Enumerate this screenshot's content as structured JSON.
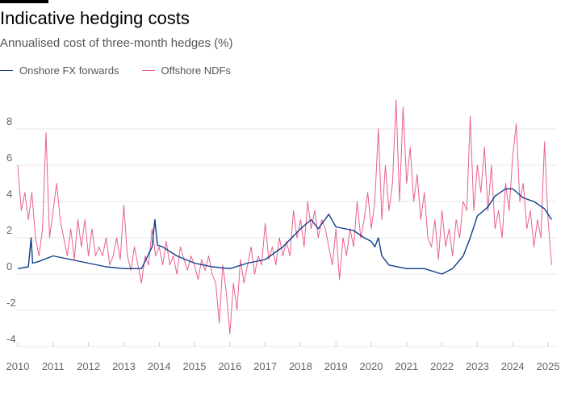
{
  "title": "Indicative hedging costs",
  "subtitle": "Annualised cost of three-month hedges (%)",
  "colors": {
    "onshore": "#0f3f8a",
    "offshore": "#e8608f",
    "grid": "#e8e6e4"
  },
  "chart_data": {
    "type": "line",
    "title": "Indicative hedging costs",
    "ylabel": "Annualised cost of three-month hedges (%)",
    "xlim": [
      2010,
      2025.1
    ],
    "ylim": [
      -4,
      10
    ],
    "yticks": [
      "8",
      "6",
      "4",
      "2",
      "0",
      "-2",
      "-4"
    ],
    "ytick_values": [
      8,
      6,
      4,
      2,
      0,
      -2,
      -4
    ],
    "xticks": [
      "2010",
      "2011",
      "2012",
      "2013",
      "2014",
      "2015",
      "2016",
      "2017",
      "2018",
      "2019",
      "2020",
      "2021",
      "2022",
      "2023",
      "2024",
      "2025"
    ],
    "grid": true,
    "legend_placement": "top-left",
    "series": [
      {
        "name": "Onshore FX forwards",
        "x": [
          2010,
          2010.3,
          2010.38,
          2010.42,
          2010.6,
          2011,
          2011.5,
          2012,
          2012.5,
          2013,
          2013.5,
          2013.8,
          2013.88,
          2013.95,
          2014.1,
          2014.5,
          2015,
          2015.5,
          2016,
          2016.5,
          2017,
          2017.5,
          2018,
          2018.3,
          2018.5,
          2018.8,
          2019,
          2019.5,
          2019.8,
          2020,
          2020.1,
          2020.2,
          2020.3,
          2020.5,
          2021,
          2021.5,
          2022,
          2022.3,
          2022.6,
          2022.8,
          2023,
          2023.3,
          2023.5,
          2023.8,
          2024,
          2024.3,
          2024.6,
          2024.9,
          2025.1
        ],
        "y": [
          0.3,
          0.4,
          2.0,
          0.6,
          0.7,
          1.0,
          0.8,
          0.6,
          0.4,
          0.3,
          0.3,
          1.5,
          3.0,
          1.6,
          1.5,
          1.0,
          0.6,
          0.4,
          0.3,
          0.6,
          0.8,
          1.5,
          2.5,
          3.0,
          2.5,
          3.3,
          2.6,
          2.4,
          2.0,
          1.8,
          1.5,
          2.0,
          1.0,
          0.5,
          0.3,
          0.3,
          0.0,
          0.3,
          1.0,
          2.0,
          3.2,
          3.7,
          4.3,
          4.7,
          4.7,
          4.2,
          4.0,
          3.6,
          3.0
        ]
      },
      {
        "name": "Offshore NDFs",
        "x_start": 2010,
        "x_step": 0.1,
        "y": [
          6.0,
          3.5,
          4.5,
          3.0,
          4.5,
          2.0,
          1.0,
          2.5,
          7.8,
          2.0,
          3.5,
          5.0,
          3.0,
          2.0,
          1.0,
          2.5,
          0.8,
          3.0,
          1.5,
          3.0,
          1.0,
          2.5,
          1.0,
          1.5,
          1.0,
          2.0,
          0.5,
          1.0,
          2.0,
          0.8,
          3.8,
          1.0,
          0.2,
          1.5,
          0.5,
          -0.5,
          1.0,
          0.5,
          2.5,
          1.0,
          1.5,
          0.5,
          1.8,
          0.5,
          1.0,
          0.0,
          1.5,
          0.8,
          0.2,
          1.0,
          0.5,
          -0.3,
          0.8,
          0.2,
          1.0,
          0.0,
          -0.5,
          -2.7,
          0.5,
          -1.0,
          -3.3,
          -0.5,
          -2.0,
          0.8,
          -0.5,
          0.5,
          1.5,
          0.0,
          1.0,
          0.5,
          2.8,
          0.8,
          1.5,
          0.5,
          2.0,
          1.0,
          1.8,
          1.0,
          3.5,
          2.0,
          3.0,
          1.5,
          4.0,
          2.5,
          3.5,
          2.0,
          3.0,
          2.5,
          1.5,
          0.5,
          2.5,
          -0.3,
          2.0,
          1.0,
          2.5,
          1.5,
          4.0,
          2.0,
          3.0,
          4.5,
          2.5,
          4.0,
          8.0,
          3.0,
          6.0,
          3.5,
          5.0,
          9.6,
          4.0,
          9.2,
          5.0,
          7.0,
          4.0,
          5.5,
          3.0,
          4.5,
          2.0,
          1.5,
          3.0,
          0.8,
          3.5,
          1.5,
          2.5,
          1.0,
          3.0,
          2.0,
          4.0,
          3.5,
          8.7,
          3.5,
          6.0,
          4.5,
          7.0,
          3.5,
          6.0,
          2.5,
          3.5,
          2.0,
          5.0,
          3.5,
          6.5,
          8.3,
          4.0,
          5.0,
          2.5,
          3.5,
          1.5,
          3.0,
          2.0,
          7.3,
          3.0,
          0.5
        ]
      }
    ]
  }
}
